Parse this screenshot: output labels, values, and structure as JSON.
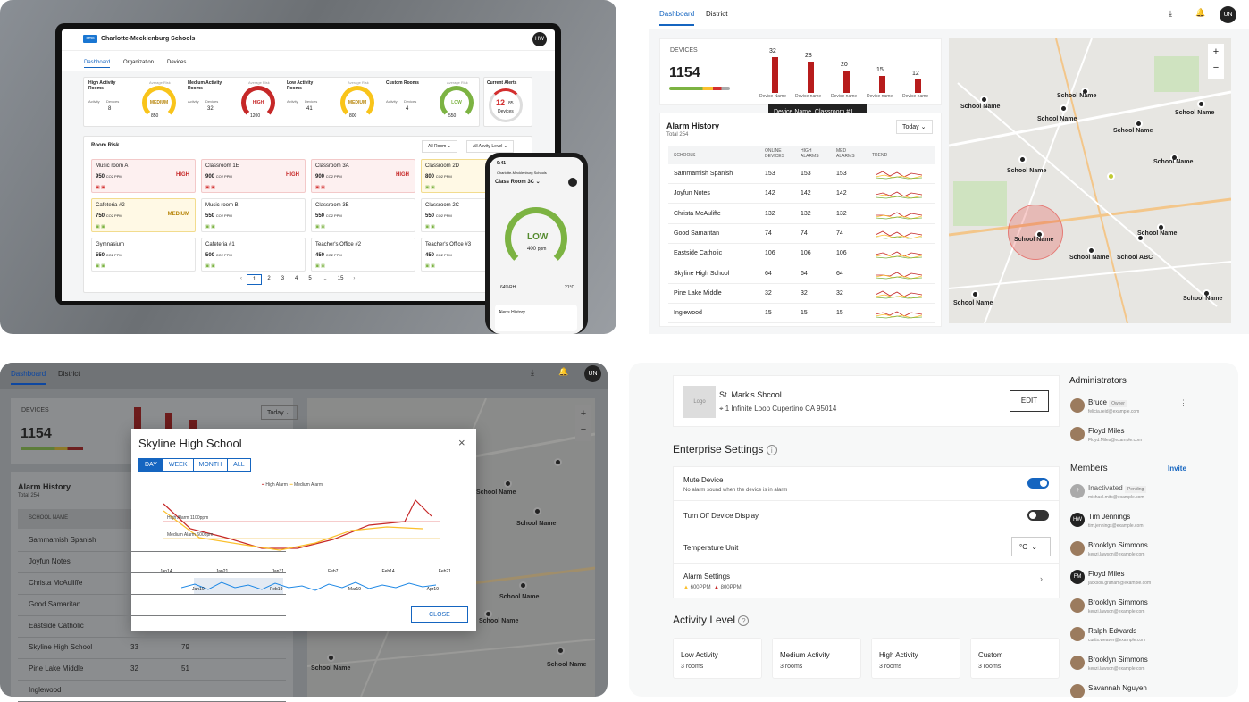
{
  "q1": {
    "org": "Charlotte-Mecklenburg Schools",
    "logo": "cms",
    "avatar": "HW",
    "tabs": [
      "Dashboard",
      "Organization",
      "Devices"
    ],
    "stats": [
      {
        "title": "High Activity Rooms",
        "activity_label": "Activity",
        "devices_label": "Devices",
        "value": "8",
        "gauge_label": "Average Risk",
        "level": "MEDIUM",
        "count": "850"
      },
      {
        "title": "Medium Activity Rooms",
        "activity_label": "Activity",
        "devices_label": "Devices",
        "value": "32",
        "gauge_label": "Average Risk",
        "level": "HIGH",
        "count": "1200"
      },
      {
        "title": "Low Activity Rooms",
        "activity_label": "Activity",
        "devices_label": "Devices",
        "value": "41",
        "gauge_label": "Average Risk",
        "level": "MEDIUM",
        "count": "800"
      },
      {
        "title": "Custom Rooms",
        "activity_label": "Activity",
        "devices_label": "Devices",
        "value": "4",
        "gauge_label": "Average Risk",
        "level": "LOW",
        "count": "550"
      }
    ],
    "alerts": {
      "title": "Current Alerts",
      "value": "12",
      "total": "85",
      "label": "Devices"
    },
    "room_risk": "Room Risk",
    "filter_room": "All Room",
    "filter_level": "All Acvity Level",
    "rooms": [
      {
        "name": "Music room A",
        "val": "950",
        "unit": "CO2 PPM",
        "level": "HIGH",
        "type": "red"
      },
      {
        "name": "Classroom 1E",
        "val": "900",
        "unit": "CO2 PPM",
        "level": "HIGH",
        "type": "red"
      },
      {
        "name": "Classroom 3A",
        "val": "900",
        "unit": "CO2 PPM",
        "level": "HIGH",
        "type": "red"
      },
      {
        "name": "Classroom 2D",
        "val": "800",
        "unit": "CO2 PPM",
        "level": "",
        "type": "yel"
      },
      {
        "name": "Cafeteria #2",
        "val": "750",
        "unit": "CO2 PPM",
        "level": "MEDIUM",
        "type": "yel"
      },
      {
        "name": "Music room B",
        "val": "550",
        "unit": "CO2 PPM",
        "level": "",
        "type": ""
      },
      {
        "name": "Classroom 3B",
        "val": "550",
        "unit": "CO2 PPM",
        "level": "",
        "type": ""
      },
      {
        "name": "Classroom 2C",
        "val": "550",
        "unit": "CO2 PPM",
        "level": "",
        "type": ""
      },
      {
        "name": "Gymnasium",
        "val": "550",
        "unit": "CO2 PPM",
        "level": "",
        "type": ""
      },
      {
        "name": "Cafeteria #1",
        "val": "500",
        "unit": "CO2 PPM",
        "level": "",
        "type": ""
      },
      {
        "name": "Teacher's Office #2",
        "val": "450",
        "unit": "CO2 PPM",
        "level": "",
        "type": ""
      },
      {
        "name": "Teacher's Office #3",
        "val": "450",
        "unit": "CO2 PPM",
        "level": "",
        "type": ""
      }
    ],
    "pages": [
      "1",
      "2",
      "3",
      "4",
      "5",
      "...",
      "15"
    ],
    "phone": {
      "time": "9:41",
      "org": "Charlotte-Mecklenburg Schools",
      "room": "Class Room 3C",
      "level": "LOW",
      "ppm": "400",
      "unit": "ppm",
      "humidity": "64%RH",
      "temp": "21°C",
      "alerts": "Alerts History"
    }
  },
  "q2": {
    "tabs": [
      "Dashboard",
      "District"
    ],
    "devices_label": "DEVICES",
    "devices": "1154",
    "bars": [
      32,
      28,
      20,
      15,
      12
    ],
    "bar_label": "Device name",
    "bar_first": "Device Name",
    "tooltip": "Device Name, Classroom #1, School Name",
    "alarm_title": "Alarm History",
    "alarm_total": "Total 254",
    "period": "Today",
    "cols": [
      "SCHOOLS",
      "ONLINE DEVICES",
      "HIGH ALARMS",
      "MED ALARMS",
      "TREND"
    ],
    "rows": [
      [
        "Sammamish Spanish",
        "153",
        "153",
        "153"
      ],
      [
        "Joyfun Notes",
        "142",
        "142",
        "142"
      ],
      [
        "Christa McAuliffe",
        "132",
        "132",
        "132"
      ],
      [
        "Good Samaritan",
        "74",
        "74",
        "74"
      ],
      [
        "Eastside Catholic",
        "106",
        "106",
        "106"
      ],
      [
        "Skyline High School",
        "64",
        "64",
        "64"
      ],
      [
        "Pine Lake Middle",
        "32",
        "32",
        "32"
      ],
      [
        "Inglewood",
        "15",
        "15",
        "15"
      ]
    ],
    "map_labels": [
      "School Name",
      "School Name",
      "School Name",
      "School Name",
      "School Name",
      "School Name",
      "School Name",
      "School Name",
      "School Name",
      "School ABC",
      "School Name",
      "School Name",
      "School Name"
    ]
  },
  "q3": {
    "tabs": [
      "Dashboard",
      "District"
    ],
    "avatar": "UN",
    "devices_label": "DEVICES",
    "devices": "1154",
    "period": "Today",
    "alarm_title": "Alarm History",
    "alarm_total": "Total 254",
    "col": "SCHOOL NAME",
    "rows": [
      "Sammamish Spanish",
      "Joyfun Notes",
      "Christa McAuliffe",
      "Good Samaritan",
      "Eastside Catholic",
      "Skyline High School",
      "Pine Lake Middle",
      "Inglewood"
    ],
    "row_vals": [
      [
        "",
        ""
      ],
      [
        "",
        ""
      ],
      [
        "",
        ""
      ],
      [
        "",
        ""
      ],
      [
        "",
        ""
      ],
      [
        "33",
        "79"
      ],
      [
        "32",
        "51"
      ],
      [
        "",
        ""
      ]
    ],
    "modal": {
      "title": "Skyline High School",
      "tabs": [
        "DAY",
        "WEEK",
        "MONTH",
        "ALL"
      ],
      "legend_high": "High Alarm",
      "legend_med": "Medium Alarm",
      "high_line": "High Alarm   1100ppm",
      "med_line": "Medium Alarm   600ppm",
      "x": [
        "Jan14",
        "Jan21",
        "Jan31",
        "Feb7",
        "Feb14",
        "Feb21"
      ],
      "x2": [
        "Jan10",
        "Feb19",
        "Mar19",
        "Apr19"
      ],
      "close": "CLOSE"
    },
    "map_labels": [
      "School Name",
      "School Name",
      "School Name",
      "School Name",
      "School Name",
      "School Name"
    ]
  },
  "q4": {
    "logo": "Logo",
    "name": "St. Mark's Shcool",
    "address": "1 Infinite Loop Cupertino CA 95014",
    "edit": "EDIT",
    "enterprise": "Enterprise Settings",
    "mute": "Mute Device",
    "mute_sub": "No alarm sound when the device is in alarm",
    "display": "Turn Off Device Display",
    "temp": "Temperature Unit",
    "temp_val": "°C",
    "alarm": "Alarm Settings",
    "alarm_a": "600PPM",
    "alarm_b": "800PPM",
    "activity": "Activity Level",
    "levels": [
      {
        "name": "Low Activity",
        "rooms": "3 rooms"
      },
      {
        "name": "Medium Activity",
        "rooms": "3 rooms"
      },
      {
        "name": "High Activity",
        "rooms": "3 rooms"
      },
      {
        "name": "Custom",
        "rooms": "3 rooms"
      }
    ],
    "admins_title": "Administrators",
    "admins": [
      {
        "name": "Bruce",
        "tag": "Owner",
        "email": "felicia.reid@example.com"
      },
      {
        "name": "Floyd Miles",
        "tag": "",
        "email": "Floyd.Miles@example.com"
      }
    ],
    "members_title": "Members",
    "invite": "Invite",
    "members": [
      {
        "name": "Inactivated",
        "tag": "Pending",
        "email": "michael.mitc@example.com",
        "init": "?"
      },
      {
        "name": "Tim Jennings",
        "tag": "",
        "email": "tim.jennings@example.com",
        "init": "HW"
      },
      {
        "name": "Brooklyn Simmons",
        "tag": "",
        "email": "kenzi.lawson@example.com",
        "init": ""
      },
      {
        "name": "Floyd Miles",
        "tag": "",
        "email": "jackson.graham@example.com",
        "init": "FM"
      },
      {
        "name": "Brooklyn Simmons",
        "tag": "",
        "email": "kenzi.lawson@example.com",
        "init": ""
      },
      {
        "name": "Ralph Edwards",
        "tag": "",
        "email": "curtis.weaver@example.com",
        "init": ""
      },
      {
        "name": "Brooklyn Simmons",
        "tag": "",
        "email": "kenzi.lawson@example.com",
        "init": ""
      },
      {
        "name": "Savannah Nguyen",
        "tag": "",
        "email": "",
        "init": ""
      }
    ]
  }
}
